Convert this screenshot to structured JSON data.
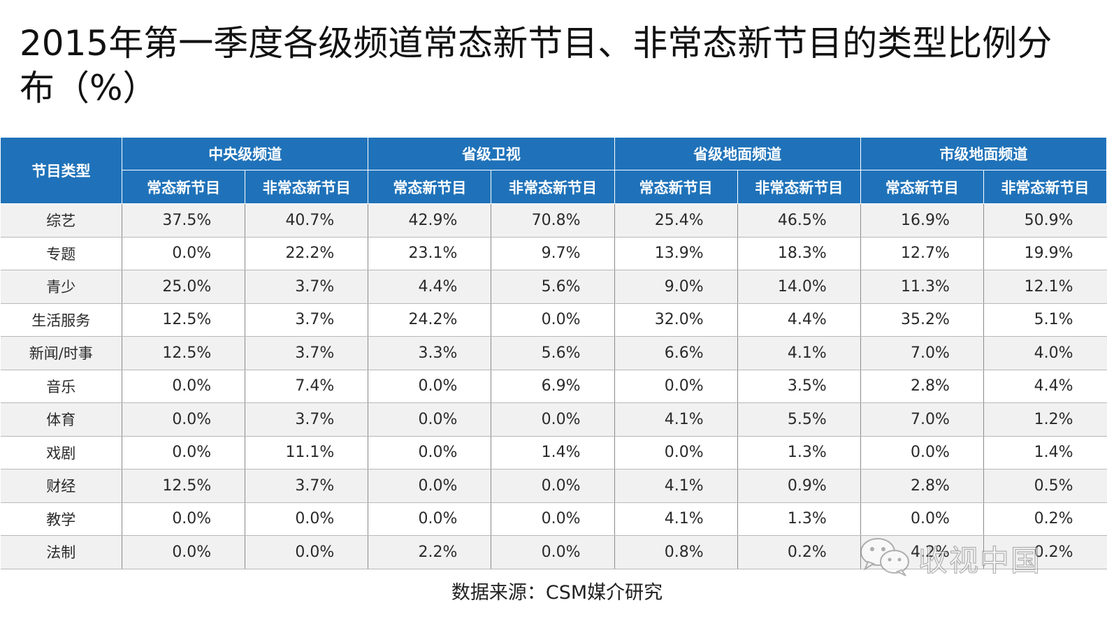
{
  "title": "2015年第一季度各级频道常态新节目、非常态新节目的类型比例分布（%）",
  "table": {
    "type_header": "节目类型",
    "groups": [
      "中央级频道",
      "省级卫视",
      "省级地面频道",
      "市级地面频道"
    ],
    "subheaders": [
      "常态新节目",
      "非常态新节目"
    ],
    "rows": [
      {
        "type": "综艺",
        "values": [
          "37.5%",
          "40.7%",
          "42.9%",
          "70.8%",
          "25.4%",
          "46.5%",
          "16.9%",
          "50.9%"
        ]
      },
      {
        "type": "专题",
        "values": [
          "0.0%",
          "22.2%",
          "23.1%",
          "9.7%",
          "13.9%",
          "18.3%",
          "12.7%",
          "19.9%"
        ]
      },
      {
        "type": "青少",
        "values": [
          "25.0%",
          "3.7%",
          "4.4%",
          "5.6%",
          "9.0%",
          "14.0%",
          "11.3%",
          "12.1%"
        ]
      },
      {
        "type": "生活服务",
        "values": [
          "12.5%",
          "3.7%",
          "24.2%",
          "0.0%",
          "32.0%",
          "4.4%",
          "35.2%",
          "5.1%"
        ]
      },
      {
        "type": "新闻/时事",
        "values": [
          "12.5%",
          "3.7%",
          "3.3%",
          "5.6%",
          "6.6%",
          "4.1%",
          "7.0%",
          "4.0%"
        ]
      },
      {
        "type": "音乐",
        "values": [
          "0.0%",
          "7.4%",
          "0.0%",
          "6.9%",
          "0.0%",
          "3.5%",
          "2.8%",
          "4.4%"
        ]
      },
      {
        "type": "体育",
        "values": [
          "0.0%",
          "3.7%",
          "0.0%",
          "0.0%",
          "4.1%",
          "5.5%",
          "7.0%",
          "1.2%"
        ]
      },
      {
        "type": "戏剧",
        "values": [
          "0.0%",
          "11.1%",
          "0.0%",
          "1.4%",
          "0.0%",
          "1.3%",
          "0.0%",
          "1.4%"
        ]
      },
      {
        "type": "财经",
        "values": [
          "12.5%",
          "3.7%",
          "0.0%",
          "0.0%",
          "4.1%",
          "0.9%",
          "2.8%",
          "0.5%"
        ]
      },
      {
        "type": "教学",
        "values": [
          "0.0%",
          "0.0%",
          "0.0%",
          "0.0%",
          "4.1%",
          "1.3%",
          "0.0%",
          "0.2%"
        ]
      },
      {
        "type": "法制",
        "values": [
          "0.0%",
          "0.0%",
          "2.2%",
          "0.0%",
          "0.8%",
          "0.2%",
          "4.2%",
          "0.2%"
        ]
      }
    ]
  },
  "source": "数据来源：CSM媒介研究",
  "watermark": {
    "text": "收视中国",
    "icon": "wechat-icon"
  },
  "colors": {
    "header_bg": "#1f72b9",
    "header_text": "#ffffff",
    "stripe": "#f1f1f1"
  }
}
